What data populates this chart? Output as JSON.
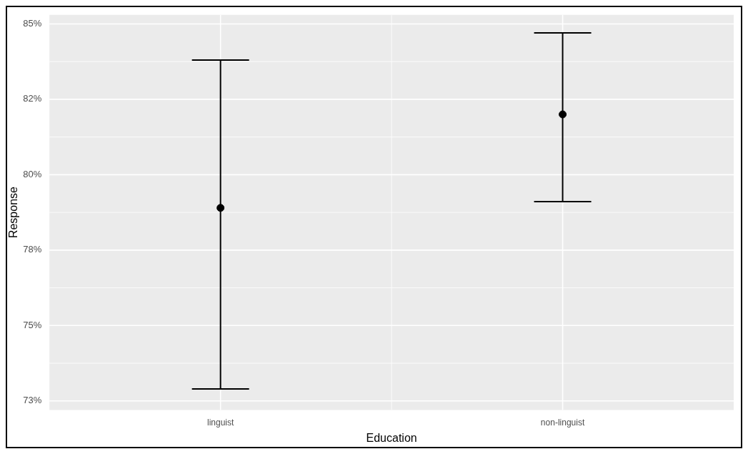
{
  "chart_data": {
    "type": "scatter",
    "xlabel": "Education",
    "ylabel": "Response",
    "categories": [
      "linguist",
      "non-linguist"
    ],
    "values": [
      78.9,
      82.0
    ],
    "errors": [
      [
        72.9,
        83.8
      ],
      [
        79.1,
        84.7
      ]
    ],
    "color": "#000000",
    "ylim": [
      72.2,
      85.3
    ],
    "yticks": [
      {
        "value": 72.5,
        "label": "73%"
      },
      {
        "value": 75,
        "label": "75%"
      },
      {
        "value": 77.5,
        "label": "78%"
      },
      {
        "value": 80,
        "label": "80%"
      },
      {
        "value": 82.5,
        "label": "82%"
      },
      {
        "value": 85,
        "label": "85%"
      }
    ],
    "grid": true,
    "marker": "circle",
    "legend": false
  }
}
